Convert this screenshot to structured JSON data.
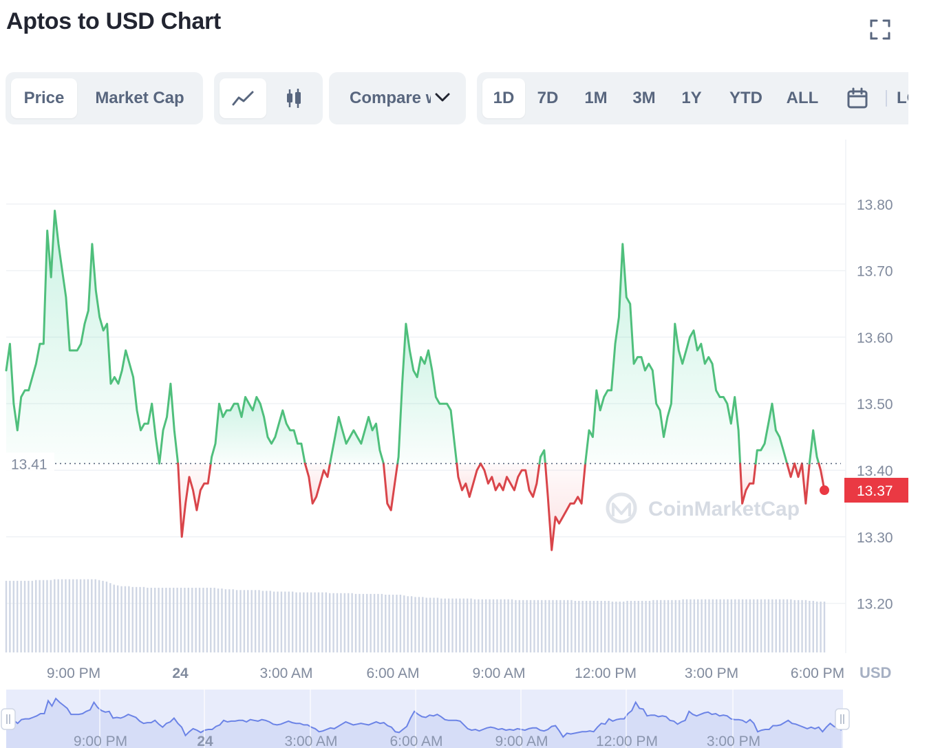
{
  "title": "Aptos to USD Chart",
  "icons": {
    "fullscreen": "fullscreen-icon",
    "line": "line-chart-icon",
    "candle": "candlestick-icon",
    "chevron": "chevron-down-icon",
    "calendar": "calendar-icon",
    "watermark_logo": "coinmarketcap-logo-icon"
  },
  "toolbar": {
    "metric_tabs": [
      {
        "label": "Price",
        "active": true
      },
      {
        "label": "Market Cap",
        "active": false
      }
    ],
    "compare_label": "Compare with",
    "ranges": [
      {
        "label": "1D",
        "active": true
      },
      {
        "label": "7D",
        "active": false
      },
      {
        "label": "1M",
        "active": false
      },
      {
        "label": "3M",
        "active": false
      },
      {
        "label": "1Y",
        "active": false
      },
      {
        "label": "YTD",
        "active": false
      },
      {
        "label": "ALL",
        "active": false
      }
    ],
    "log_label": "LOG"
  },
  "watermark": "CoinMarketCap",
  "currency_label": "USD",
  "colors": {
    "up": "#16c784",
    "up_line": "#4fbf7c",
    "down": "#ea3943",
    "down_line": "#d9454a",
    "grid": "#eff2f5",
    "axis_text": "#808a9d",
    "volume": "#cfd6e4",
    "nav_line": "#6b83e6",
    "nav_fill": "#e8ecfb"
  },
  "chart_data": {
    "type": "line",
    "title": "Aptos to USD Chart",
    "xlabel": "",
    "ylabel": "USD",
    "ylim": [
      13.12,
      13.9
    ],
    "yticks": [
      "13.80",
      "13.70",
      "13.60",
      "13.50",
      "13.40",
      "13.30",
      "13.20"
    ],
    "xticks": [
      "9:00 PM",
      "24",
      "3:00 AM",
      "6:00 AM",
      "9:00 AM",
      "12:00 PM",
      "3:00 PM",
      "6:00 PM"
    ],
    "reference_price": 13.41,
    "reference_label": "13.41",
    "current_price": 13.37,
    "current_label": "13.37",
    "grid": true,
    "series": [
      {
        "values": [
          13.55,
          13.59,
          13.5,
          13.46,
          13.51,
          13.52,
          13.52,
          13.54,
          13.56,
          13.59,
          13.59,
          13.76,
          13.69,
          13.79,
          13.74,
          13.7,
          13.66,
          13.58,
          13.58,
          13.58,
          13.59,
          13.62,
          13.64,
          13.74,
          13.67,
          13.63,
          13.61,
          13.62,
          13.53,
          13.54,
          13.53,
          13.55,
          13.58,
          13.56,
          13.54,
          13.49,
          13.46,
          13.47,
          13.47,
          13.5,
          13.45,
          13.41,
          13.46,
          13.48,
          13.53,
          13.46,
          13.41,
          13.3,
          13.35,
          13.39,
          13.37,
          13.34,
          13.37,
          13.38,
          13.38,
          13.42,
          13.44,
          13.5,
          13.48,
          13.49,
          13.49,
          13.5,
          13.5,
          13.48,
          13.51,
          13.5,
          13.49,
          13.51,
          13.5,
          13.48,
          13.45,
          13.44,
          13.45,
          13.47,
          13.49,
          13.47,
          13.46,
          13.46,
          13.44,
          13.44,
          13.41,
          13.39,
          13.35,
          13.36,
          13.38,
          13.4,
          13.39,
          13.42,
          13.45,
          13.48,
          13.46,
          13.44,
          13.45,
          13.46,
          13.45,
          13.44,
          13.46,
          13.48,
          13.46,
          13.47,
          13.43,
          13.41,
          13.35,
          13.34,
          13.38,
          13.42,
          13.53,
          13.62,
          13.58,
          13.55,
          13.54,
          13.57,
          13.56,
          13.58,
          13.55,
          13.51,
          13.5,
          13.5,
          13.5,
          13.49,
          13.44,
          13.39,
          13.37,
          13.38,
          13.36,
          13.38,
          13.4,
          13.41,
          13.4,
          13.38,
          13.39,
          13.37,
          13.38,
          13.37,
          13.39,
          13.38,
          13.37,
          13.39,
          13.4,
          13.4,
          13.37,
          13.36,
          13.38,
          13.42,
          13.43,
          13.36,
          13.28,
          13.33,
          13.32,
          13.33,
          13.34,
          13.35,
          13.35,
          13.36,
          13.35,
          13.41,
          13.46,
          13.45,
          13.52,
          13.49,
          13.51,
          13.52,
          13.52,
          13.59,
          13.63,
          13.74,
          13.66,
          13.65,
          13.56,
          13.57,
          13.57,
          13.55,
          13.56,
          13.55,
          13.5,
          13.49,
          13.45,
          13.48,
          13.5,
          13.62,
          13.58,
          13.56,
          13.58,
          13.6,
          13.61,
          13.58,
          13.59,
          13.56,
          13.57,
          13.56,
          13.52,
          13.51,
          13.51,
          13.5,
          13.47,
          13.51,
          13.46,
          13.35,
          13.37,
          13.38,
          13.38,
          13.43,
          13.43,
          13.44,
          13.47,
          13.5,
          13.46,
          13.45,
          13.43,
          13.41,
          13.39,
          13.41,
          13.39,
          13.41,
          13.35,
          13.41,
          13.46,
          13.42,
          13.4,
          13.37
        ]
      }
    ],
    "volume": [
      0.93,
      0.93,
      0.93,
      0.93,
      0.93,
      0.93,
      0.93,
      0.93,
      0.94,
      0.94,
      0.94,
      0.94,
      0.94,
      0.95,
      0.95,
      0.95,
      0.95,
      0.95,
      0.95,
      0.95,
      0.95,
      0.95,
      0.95,
      0.95,
      0.95,
      0.94,
      0.93,
      0.92,
      0.9,
      0.88,
      0.87,
      0.86,
      0.86,
      0.86,
      0.85,
      0.85,
      0.85,
      0.85,
      0.84,
      0.84,
      0.84,
      0.84,
      0.84,
      0.84,
      0.84,
      0.84,
      0.84,
      0.84,
      0.84,
      0.84,
      0.84,
      0.84,
      0.84,
      0.84,
      0.84,
      0.84,
      0.84,
      0.83,
      0.83,
      0.82,
      0.82,
      0.82,
      0.81,
      0.81,
      0.81,
      0.81,
      0.81,
      0.81,
      0.81,
      0.8,
      0.8,
      0.8,
      0.79,
      0.79,
      0.79,
      0.79,
      0.79,
      0.79,
      0.78,
      0.78,
      0.78,
      0.78,
      0.78,
      0.78,
      0.78,
      0.78,
      0.78,
      0.77,
      0.77,
      0.77,
      0.77,
      0.77,
      0.77,
      0.77,
      0.76,
      0.76,
      0.76,
      0.76,
      0.76,
      0.76,
      0.76,
      0.76,
      0.75,
      0.75,
      0.75,
      0.75,
      0.75,
      0.74,
      0.73,
      0.73,
      0.72,
      0.72,
      0.72,
      0.71,
      0.71,
      0.71,
      0.71,
      0.7,
      0.7,
      0.7,
      0.7,
      0.7,
      0.7,
      0.7,
      0.7,
      0.7,
      0.69,
      0.69,
      0.69,
      0.69,
      0.69,
      0.69,
      0.69,
      0.69,
      0.69,
      0.69,
      0.69,
      0.68,
      0.68,
      0.68,
      0.68,
      0.68,
      0.68,
      0.68,
      0.68,
      0.68,
      0.68,
      0.68,
      0.68,
      0.68,
      0.68,
      0.68,
      0.68,
      0.67,
      0.67,
      0.67,
      0.67,
      0.67,
      0.67,
      0.67,
      0.67,
      0.67,
      0.67,
      0.66,
      0.66,
      0.66,
      0.66,
      0.67,
      0.67,
      0.67,
      0.67,
      0.67,
      0.67,
      0.67,
      0.68,
      0.68,
      0.68,
      0.68,
      0.68,
      0.68,
      0.68,
      0.68,
      0.69,
      0.69,
      0.69,
      0.69,
      0.69,
      0.69,
      0.69,
      0.69,
      0.69,
      0.69,
      0.69,
      0.69,
      0.69,
      0.69,
      0.69,
      0.69,
      0.69,
      0.69,
      0.69,
      0.69,
      0.69,
      0.69,
      0.69,
      0.69,
      0.69,
      0.69,
      0.69,
      0.69,
      0.69,
      0.69,
      0.68,
      0.68,
      0.68,
      0.68,
      0.67,
      0.67,
      0.66,
      0.66,
      0.66
    ],
    "navigator": {
      "xticks": [
        "9:00 PM",
        "24",
        "3:00 AM",
        "6:00 AM",
        "9:00 AM",
        "12:00 PM",
        "3:00 PM"
      ]
    }
  }
}
